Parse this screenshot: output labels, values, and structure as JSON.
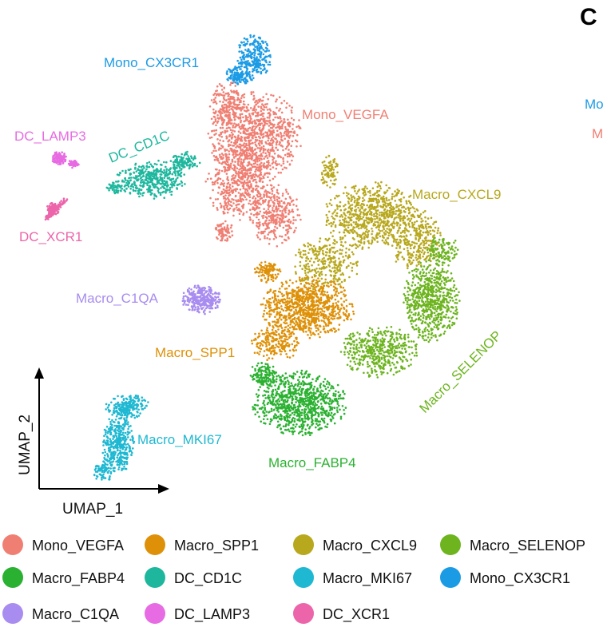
{
  "panel_letter": "C",
  "side_labels": [
    "Mo",
    "M"
  ],
  "chart_data": {
    "type": "scatter",
    "xlabel": "UMAP_1",
    "ylabel": "UMAP_2",
    "grid": false,
    "legend_position": "bottom",
    "series": [
      {
        "name": "Mono_VEGFA",
        "color": "#F07F73"
      },
      {
        "name": "Macro_SPP1",
        "color": "#DE9108"
      },
      {
        "name": "Macro_CXCL9",
        "color": "#B8A81D"
      },
      {
        "name": "Macro_SELENOP",
        "color": "#6DB41F"
      },
      {
        "name": "Macro_FABP4",
        "color": "#2BB131"
      },
      {
        "name": "DC_CD1C",
        "color": "#1EB79E"
      },
      {
        "name": "Macro_MKI67",
        "color": "#1EB8D2"
      },
      {
        "name": "Mono_CX3CR1",
        "color": "#1C9BE5"
      },
      {
        "name": "Macro_C1QA",
        "color": "#A88CF0"
      },
      {
        "name": "DC_LAMP3",
        "color": "#E76BE2"
      },
      {
        "name": "DC_XCR1",
        "color": "#EC65AA"
      }
    ]
  }
}
